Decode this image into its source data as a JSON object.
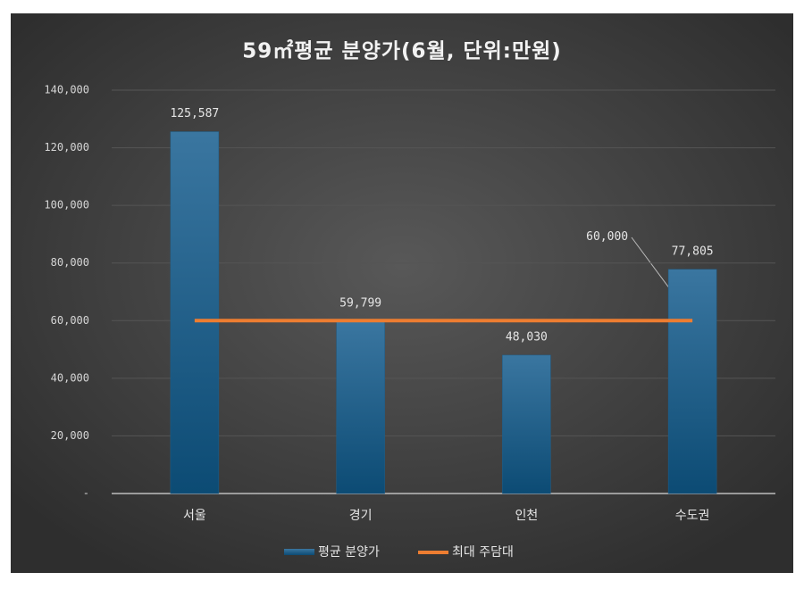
{
  "chart_data": {
    "type": "combo",
    "title": "59㎡평균 분양가(6월, 단위:만원)",
    "categories": [
      "서울",
      "경기",
      "인천",
      "수도권"
    ],
    "series": [
      {
        "name": "평균 분양가",
        "type": "bar",
        "color": "#1f5f8b",
        "values": [
          125587,
          59799,
          48030,
          77805
        ],
        "value_labels": [
          "125,587",
          "59,799",
          "48,030",
          "77,805"
        ]
      },
      {
        "name": "최대 주담대",
        "type": "line",
        "color": "#ed7d31",
        "values": [
          60000,
          60000,
          60000,
          60000
        ],
        "value_labels": [
          null,
          null,
          null,
          "60,000"
        ]
      }
    ],
    "ylim": [
      0,
      140000
    ],
    "yticks": [
      {
        "value": 0,
        "label": "-"
      },
      {
        "value": 20000,
        "label": "20,000"
      },
      {
        "value": 40000,
        "label": "40,000"
      },
      {
        "value": 60000,
        "label": "60,000"
      },
      {
        "value": 80000,
        "label": "80,000"
      },
      {
        "value": 100000,
        "label": "100,000"
      },
      {
        "value": 120000,
        "label": "120,000"
      },
      {
        "value": 140000,
        "label": "140,000"
      }
    ],
    "grid": true,
    "legend": "bottom"
  }
}
